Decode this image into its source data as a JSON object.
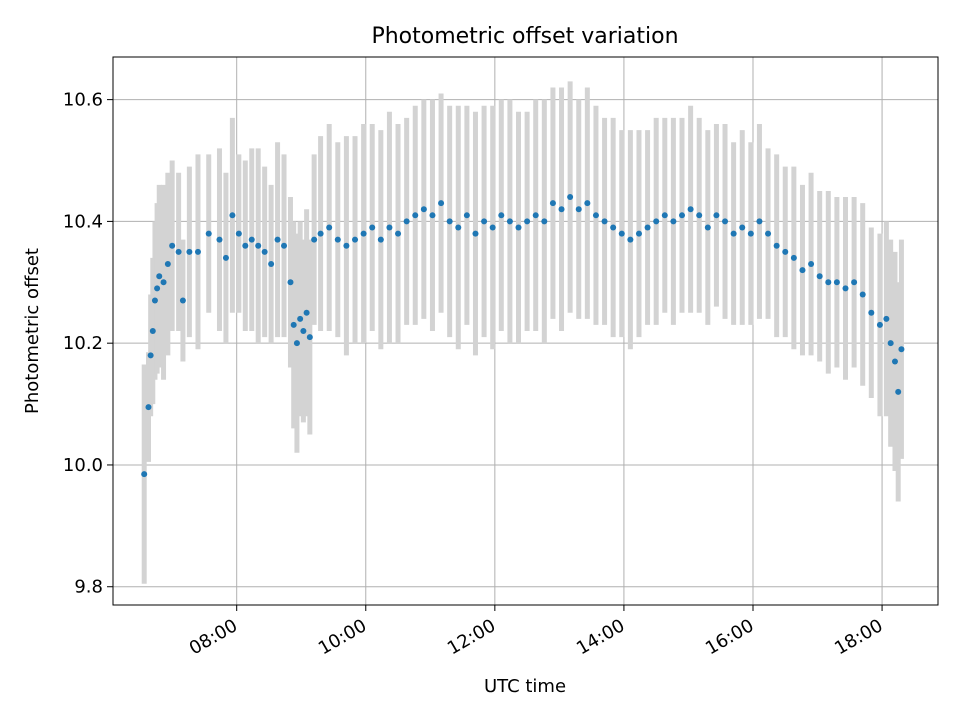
{
  "chart_data": {
    "type": "scatter",
    "title": "Photometric offset variation",
    "xlabel": "UTC time",
    "ylabel": "Photometric offset",
    "xlim": [
      "06:05",
      "18:52"
    ],
    "ylim": [
      9.77,
      10.67
    ],
    "grid": true,
    "x_ticks": [
      "08:00",
      "10:00",
      "12:00",
      "14:00",
      "16:00",
      "18:00"
    ],
    "y_ticks": [
      9.8,
      10.0,
      10.2,
      10.4,
      10.6
    ],
    "y_tick_labels": [
      "9.8",
      "10.0",
      "10.2",
      "10.4",
      "10.6"
    ],
    "series": [
      {
        "marker": "dot",
        "color": "#1f77b4",
        "error_color": "#d3d3d3",
        "points": [
          [
            "06:34",
            9.985,
            0.18
          ],
          [
            "06:38",
            10.095,
            0.09
          ],
          [
            "06:40",
            10.18,
            0.1
          ],
          [
            "06:42",
            10.22,
            0.12
          ],
          [
            "06:44",
            10.27,
            0.13
          ],
          [
            "06:46",
            10.29,
            0.14
          ],
          [
            "06:48",
            10.31,
            0.15
          ],
          [
            "06:52",
            10.3,
            0.16
          ],
          [
            "06:56",
            10.33,
            0.15
          ],
          [
            "07:00",
            10.36,
            0.14
          ],
          [
            "07:06",
            10.35,
            0.13
          ],
          [
            "07:10",
            10.27,
            0.1
          ],
          [
            "07:16",
            10.35,
            0.14
          ],
          [
            "07:24",
            10.35,
            0.16
          ],
          [
            "07:34",
            10.38,
            0.13
          ],
          [
            "07:44",
            10.37,
            0.15
          ],
          [
            "07:50",
            10.34,
            0.14
          ],
          [
            "07:56",
            10.41,
            0.16
          ],
          [
            "08:02",
            10.38,
            0.13
          ],
          [
            "08:08",
            10.36,
            0.14
          ],
          [
            "08:14",
            10.37,
            0.15
          ],
          [
            "08:20",
            10.36,
            0.16
          ],
          [
            "08:26",
            10.35,
            0.14
          ],
          [
            "08:32",
            10.33,
            0.13
          ],
          [
            "08:38",
            10.37,
            0.16
          ],
          [
            "08:44",
            10.36,
            0.15
          ],
          [
            "08:50",
            10.3,
            0.14
          ],
          [
            "08:53",
            10.23,
            0.17
          ],
          [
            "08:56",
            10.2,
            0.18
          ],
          [
            "08:59",
            10.24,
            0.16
          ],
          [
            "09:02",
            10.22,
            0.15
          ],
          [
            "09:05",
            10.25,
            0.17
          ],
          [
            "09:08",
            10.21,
            0.16
          ],
          [
            "09:12",
            10.37,
            0.14
          ],
          [
            "09:18",
            10.38,
            0.16
          ],
          [
            "09:26",
            10.39,
            0.17
          ],
          [
            "09:34",
            10.37,
            0.16
          ],
          [
            "09:42",
            10.36,
            0.18
          ],
          [
            "09:50",
            10.37,
            0.17
          ],
          [
            "09:58",
            10.38,
            0.18
          ],
          [
            "10:06",
            10.39,
            0.17
          ],
          [
            "10:14",
            10.37,
            0.18
          ],
          [
            "10:22",
            10.39,
            0.19
          ],
          [
            "10:30",
            10.38,
            0.18
          ],
          [
            "10:38",
            10.4,
            0.17
          ],
          [
            "10:46",
            10.41,
            0.18
          ],
          [
            "10:54",
            10.42,
            0.18
          ],
          [
            "11:02",
            10.41,
            0.19
          ],
          [
            "11:10",
            10.43,
            0.18
          ],
          [
            "11:18",
            10.4,
            0.19
          ],
          [
            "11:26",
            10.39,
            0.2
          ],
          [
            "11:34",
            10.41,
            0.18
          ],
          [
            "11:42",
            10.38,
            0.2
          ],
          [
            "11:50",
            10.4,
            0.19
          ],
          [
            "11:58",
            10.39,
            0.2
          ],
          [
            "12:06",
            10.41,
            0.19
          ],
          [
            "12:14",
            10.4,
            0.2
          ],
          [
            "12:22",
            10.39,
            0.19
          ],
          [
            "12:30",
            10.4,
            0.18
          ],
          [
            "12:38",
            10.41,
            0.19
          ],
          [
            "12:46",
            10.4,
            0.2
          ],
          [
            "12:54",
            10.43,
            0.19
          ],
          [
            "13:02",
            10.42,
            0.2
          ],
          [
            "13:10",
            10.44,
            0.19
          ],
          [
            "13:18",
            10.42,
            0.18
          ],
          [
            "13:26",
            10.43,
            0.19
          ],
          [
            "13:34",
            10.41,
            0.18
          ],
          [
            "13:42",
            10.4,
            0.17
          ],
          [
            "13:50",
            10.39,
            0.18
          ],
          [
            "13:58",
            10.38,
            0.17
          ],
          [
            "14:06",
            10.37,
            0.18
          ],
          [
            "14:14",
            10.38,
            0.17
          ],
          [
            "14:22",
            10.39,
            0.16
          ],
          [
            "14:30",
            10.4,
            0.17
          ],
          [
            "14:38",
            10.41,
            0.16
          ],
          [
            "14:46",
            10.4,
            0.17
          ],
          [
            "14:54",
            10.41,
            0.16
          ],
          [
            "15:02",
            10.42,
            0.17
          ],
          [
            "15:10",
            10.41,
            0.16
          ],
          [
            "15:18",
            10.39,
            0.16
          ],
          [
            "15:26",
            10.41,
            0.15
          ],
          [
            "15:34",
            10.4,
            0.16
          ],
          [
            "15:42",
            10.38,
            0.15
          ],
          [
            "15:50",
            10.39,
            0.16
          ],
          [
            "15:58",
            10.38,
            0.15
          ],
          [
            "16:06",
            10.4,
            0.16
          ],
          [
            "16:14",
            10.38,
            0.14
          ],
          [
            "16:22",
            10.36,
            0.15
          ],
          [
            "16:30",
            10.35,
            0.14
          ],
          [
            "16:38",
            10.34,
            0.15
          ],
          [
            "16:46",
            10.32,
            0.14
          ],
          [
            "16:54",
            10.33,
            0.15
          ],
          [
            "17:02",
            10.31,
            0.14
          ],
          [
            "17:10",
            10.3,
            0.15
          ],
          [
            "17:18",
            10.3,
            0.14
          ],
          [
            "17:26",
            10.29,
            0.15
          ],
          [
            "17:34",
            10.3,
            0.14
          ],
          [
            "17:42",
            10.28,
            0.15
          ],
          [
            "17:50",
            10.25,
            0.14
          ],
          [
            "17:58",
            10.23,
            0.15
          ],
          [
            "18:04",
            10.24,
            0.16
          ],
          [
            "18:08",
            10.2,
            0.17
          ],
          [
            "18:12",
            10.17,
            0.18
          ],
          [
            "18:15",
            10.12,
            0.18
          ],
          [
            "18:18",
            10.19,
            0.18
          ]
        ]
      }
    ]
  }
}
